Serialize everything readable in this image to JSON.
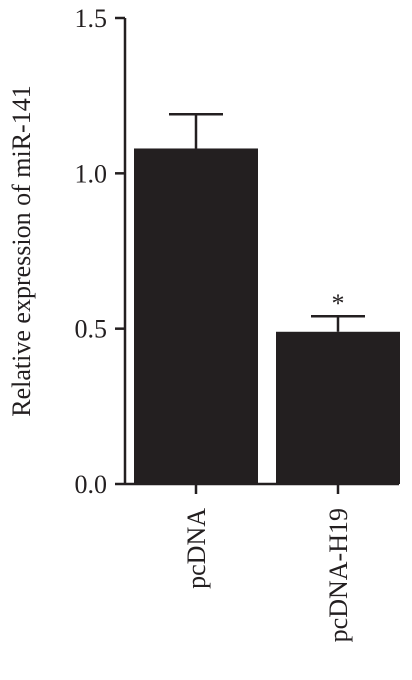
{
  "chart_data": {
    "type": "bar",
    "title": "",
    "xlabel": "",
    "ylabel": "Relative expression of miR-141",
    "ylim": [
      0,
      1.5
    ],
    "yticks": [
      0.0,
      0.5,
      1.0,
      1.5
    ],
    "ytick_labels": [
      "0.0",
      "0.5",
      "1.0",
      "1.5"
    ],
    "categories": [
      "pcDNA",
      "pcDNA-H19"
    ],
    "values": [
      1.08,
      0.49
    ],
    "errors": [
      0.11,
      0.05
    ],
    "annotations": [
      "",
      "*"
    ],
    "bar_color": "#231f20",
    "axis_color": "#231f20",
    "grid": false,
    "legend": "none"
  }
}
